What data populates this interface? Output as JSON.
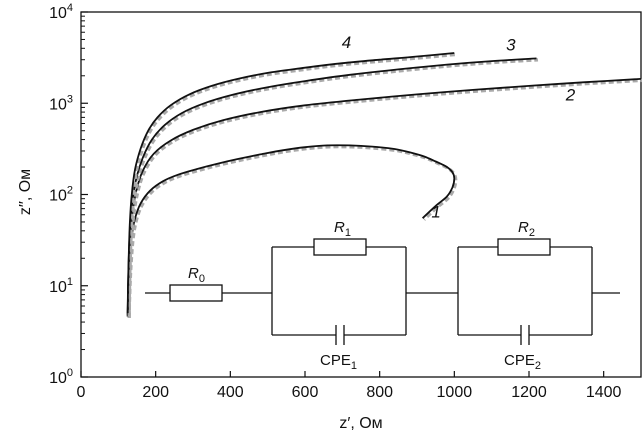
{
  "chart_data": {
    "type": "line",
    "title": "",
    "xlabel": "z′, Ом",
    "ylabel": "z′′, Ом",
    "xlim": [
      0,
      1500
    ],
    "ylim": [
      1,
      10000
    ],
    "yscale": "log",
    "grid": false,
    "x_ticks": [
      0,
      200,
      400,
      600,
      800,
      1000,
      1200,
      1400
    ],
    "y_ticks": [
      {
        "value": 1,
        "base": "10",
        "exp": "0"
      },
      {
        "value": 10,
        "base": "10",
        "exp": "1"
      },
      {
        "value": 100,
        "base": "10",
        "exp": "2"
      },
      {
        "value": 1000,
        "base": "10",
        "exp": "3"
      },
      {
        "value": 10000,
        "base": "10",
        "exp": "4"
      }
    ],
    "series": [
      {
        "label": "1",
        "color": "#111111",
        "fit_color": "#aaaaaa",
        "x": [
          125,
          126,
          128,
          131,
          136,
          145,
          160,
          185,
          220,
          260,
          310,
          360,
          420,
          480,
          540,
          600,
          660,
          720,
          780,
          840,
          880,
          920,
          950,
          980,
          995,
          1000,
          995,
          980,
          950,
          915
        ],
        "y": [
          4.6,
          7,
          12,
          20,
          35,
          55,
          80,
          110,
          140,
          165,
          190,
          215,
          245,
          275,
          305,
          330,
          345,
          345,
          335,
          315,
          290,
          260,
          230,
          200,
          175,
          150,
          120,
          95,
          75,
          55
        ]
      },
      {
        "label": "2",
        "color": "#111111",
        "fit_color": "#aaaaaa",
        "x": [
          125,
          126,
          128,
          131,
          137,
          148,
          165,
          195,
          240,
          300,
          380,
          480,
          600,
          750,
          900,
          1050,
          1200,
          1350,
          1500
        ],
        "y": [
          4.6,
          8,
          15,
          30,
          60,
          110,
          180,
          280,
          390,
          510,
          650,
          800,
          950,
          1100,
          1250,
          1400,
          1550,
          1700,
          1850
        ]
      },
      {
        "label": "3",
        "color": "#111111",
        "fit_color": "#aaaaaa",
        "x": [
          125,
          126,
          128,
          131,
          137,
          148,
          165,
          190,
          225,
          270,
          330,
          410,
          500,
          600,
          720,
          850,
          980,
          1100,
          1220
        ],
        "y": [
          4.8,
          9,
          20,
          40,
          80,
          150,
          250,
          400,
          580,
          780,
          1000,
          1250,
          1500,
          1750,
          2050,
          2350,
          2650,
          2900,
          3100
        ]
      },
      {
        "label": "4",
        "color": "#111111",
        "fit_color": "#aaaaaa",
        "x": [
          125,
          126,
          128,
          131,
          136,
          145,
          160,
          180,
          205,
          240,
          290,
          350,
          420,
          500,
          600,
          700,
          800,
          900,
          1000
        ],
        "y": [
          5,
          10,
          22,
          50,
          100,
          190,
          320,
          500,
          700,
          950,
          1250,
          1550,
          1850,
          2150,
          2450,
          2750,
          3000,
          3250,
          3550
        ]
      }
    ],
    "inset_circuit": {
      "elements": [
        "R",
        "0",
        "R",
        "1",
        "CPE",
        "1",
        "R",
        "2",
        "CPE",
        "2"
      ]
    }
  }
}
